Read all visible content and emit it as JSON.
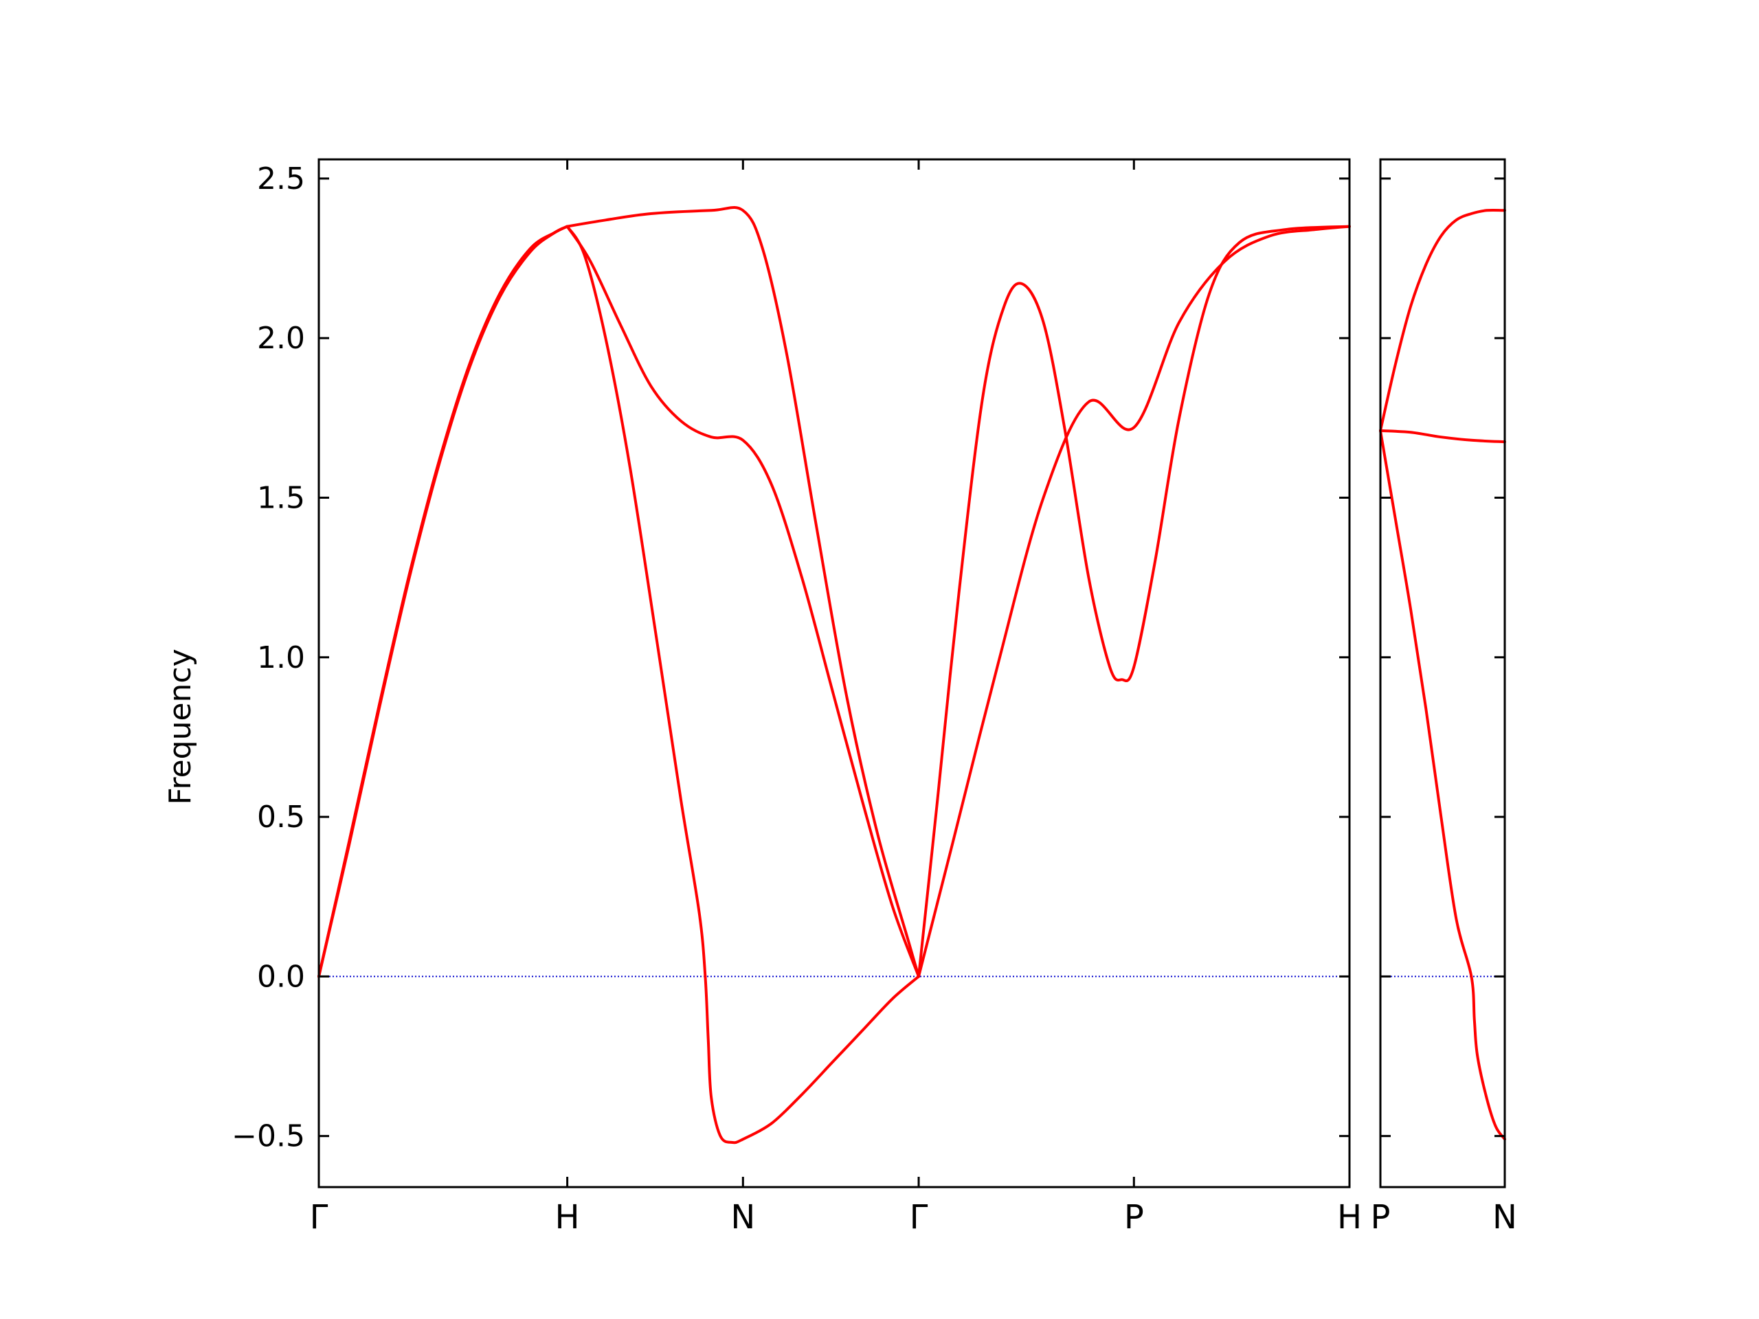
{
  "chart_data": {
    "type": "line",
    "ylabel": "Frequency",
    "ylim": [
      -0.66,
      2.56
    ],
    "yticks": [
      -0.5,
      0.0,
      0.5,
      1.0,
      1.5,
      2.0,
      2.5
    ],
    "ytick_labels": [
      "−0.5",
      "0.0",
      "0.5",
      "1.0",
      "1.5",
      "2.0",
      "2.5"
    ],
    "colors": {
      "bands": "#ff0000",
      "zero_line": "#0000cc",
      "axes": "#000000"
    },
    "panels": [
      {
        "name": "main",
        "xlim": [
          0,
          3.414
        ],
        "xticks": [
          {
            "x": 0,
            "label": "Γ"
          },
          {
            "x": 0.823,
            "label": "H"
          },
          {
            "x": 1.405,
            "label": "N"
          },
          {
            "x": 1.987,
            "label": "Γ"
          },
          {
            "x": 2.7,
            "label": "P"
          },
          {
            "x": 3.414,
            "label": "H"
          }
        ],
        "series": [
          {
            "values": [
              [
                0,
                0
              ],
              [
                0.1,
                0.42
              ],
              [
                0.2,
                0.85
              ],
              [
                0.3,
                1.26
              ],
              [
                0.4,
                1.62
              ],
              [
                0.5,
                1.92
              ],
              [
                0.6,
                2.14
              ],
              [
                0.7,
                2.28
              ],
              [
                0.78,
                2.33
              ],
              [
                0.823,
                2.35
              ]
            ]
          },
          {
            "values": [
              [
                0,
                0
              ],
              [
                0.1,
                0.41
              ],
              [
                0.2,
                0.84
              ],
              [
                0.3,
                1.25
              ],
              [
                0.4,
                1.61
              ],
              [
                0.5,
                1.91
              ],
              [
                0.6,
                2.13
              ],
              [
                0.7,
                2.27
              ],
              [
                0.78,
                2.33
              ],
              [
                0.823,
                2.35
              ]
            ]
          },
          {
            "values": [
              [
                0,
                0
              ],
              [
                0.1,
                0.42
              ],
              [
                0.2,
                0.85
              ],
              [
                0.3,
                1.26
              ],
              [
                0.4,
                1.62
              ],
              [
                0.5,
                1.92
              ],
              [
                0.6,
                2.14
              ],
              [
                0.7,
                2.28
              ],
              [
                0.78,
                2.33
              ],
              [
                0.823,
                2.35
              ]
            ]
          },
          {
            "values": [
              [
                0.823,
                2.35
              ],
              [
                0.88,
                2.26
              ],
              [
                0.95,
                2.0
              ],
              [
                1.03,
                1.6
              ],
              [
                1.12,
                1.05
              ],
              [
                1.2,
                0.55
              ],
              [
                1.26,
                0.2
              ],
              [
                1.28,
                0.0
              ],
              [
                1.29,
                -0.2
              ],
              [
                1.3,
                -0.38
              ],
              [
                1.33,
                -0.5
              ],
              [
                1.37,
                -0.52
              ],
              [
                1.405,
                -0.51
              ],
              [
                1.5,
                -0.46
              ],
              [
                1.6,
                -0.37
              ],
              [
                1.7,
                -0.27
              ],
              [
                1.8,
                -0.17
              ],
              [
                1.9,
                -0.07
              ],
              [
                1.987,
                0.0
              ]
            ]
          },
          {
            "values": [
              [
                0.823,
                2.35
              ],
              [
                0.9,
                2.24
              ],
              [
                1.0,
                2.04
              ],
              [
                1.1,
                1.85
              ],
              [
                1.2,
                1.74
              ],
              [
                1.3,
                1.69
              ],
              [
                1.405,
                1.68
              ],
              [
                1.5,
                1.54
              ],
              [
                1.6,
                1.25
              ],
              [
                1.7,
                0.9
              ],
              [
                1.8,
                0.55
              ],
              [
                1.9,
                0.22
              ],
              [
                1.987,
                0.0
              ]
            ]
          },
          {
            "values": [
              [
                0.823,
                2.35
              ],
              [
                0.95,
                2.37
              ],
              [
                1.1,
                2.39
              ],
              [
                1.3,
                2.4
              ],
              [
                1.405,
                2.4
              ],
              [
                1.47,
                2.28
              ],
              [
                1.55,
                1.95
              ],
              [
                1.65,
                1.4
              ],
              [
                1.75,
                0.87
              ],
              [
                1.85,
                0.45
              ],
              [
                1.95,
                0.12
              ],
              [
                1.987,
                0.0
              ]
            ]
          },
          {
            "values": [
              [
                1.987,
                0.0
              ],
              [
                2.05,
                0.56
              ],
              [
                2.12,
                1.2
              ],
              [
                2.2,
                1.82
              ],
              [
                2.27,
                2.1
              ],
              [
                2.33,
                2.17
              ],
              [
                2.4,
                2.05
              ],
              [
                2.47,
                1.72
              ],
              [
                2.55,
                1.25
              ],
              [
                2.62,
                0.97
              ],
              [
                2.66,
                0.93
              ],
              [
                2.7,
                0.97
              ],
              [
                2.77,
                1.3
              ],
              [
                2.85,
                1.75
              ],
              [
                2.95,
                2.14
              ],
              [
                3.05,
                2.3
              ],
              [
                3.2,
                2.34
              ],
              [
                3.414,
                2.35
              ]
            ]
          },
          {
            "values": [
              [
                1.987,
                0.0
              ],
              [
                2.1,
                0.42
              ],
              [
                2.25,
                0.98
              ],
              [
                2.4,
                1.5
              ],
              [
                2.55,
                1.8
              ],
              [
                2.7,
                1.72
              ],
              [
                2.85,
                2.05
              ],
              [
                3.0,
                2.24
              ],
              [
                3.15,
                2.32
              ],
              [
                3.3,
                2.34
              ],
              [
                3.414,
                2.35
              ]
            ]
          }
        ]
      },
      {
        "name": "branch",
        "xlim": [
          0,
          0.41
        ],
        "xticks": [
          {
            "x": 0,
            "label": "P"
          },
          {
            "x": 0.41,
            "label": "N"
          }
        ],
        "series": [
          {
            "values": [
              [
                0,
                1.71
              ],
              [
                0.05,
                1.92
              ],
              [
                0.1,
                2.1
              ],
              [
                0.15,
                2.23
              ],
              [
                0.2,
                2.32
              ],
              [
                0.25,
                2.37
              ],
              [
                0.3,
                2.39
              ],
              [
                0.35,
                2.4
              ],
              [
                0.41,
                2.4
              ]
            ]
          },
          {
            "values": [
              [
                0,
                1.71
              ],
              [
                0.1,
                1.705
              ],
              [
                0.2,
                1.69
              ],
              [
                0.3,
                1.68
              ],
              [
                0.41,
                1.675
              ]
            ]
          },
          {
            "values": [
              [
                0,
                1.71
              ],
              [
                0.05,
                1.43
              ],
              [
                0.1,
                1.15
              ],
              [
                0.15,
                0.84
              ],
              [
                0.2,
                0.5
              ],
              [
                0.25,
                0.18
              ],
              [
                0.3,
                0.0
              ],
              [
                0.31,
                -0.14
              ],
              [
                0.32,
                -0.25
              ],
              [
                0.35,
                -0.38
              ],
              [
                0.38,
                -0.47
              ],
              [
                0.41,
                -0.51
              ]
            ]
          }
        ]
      }
    ]
  }
}
